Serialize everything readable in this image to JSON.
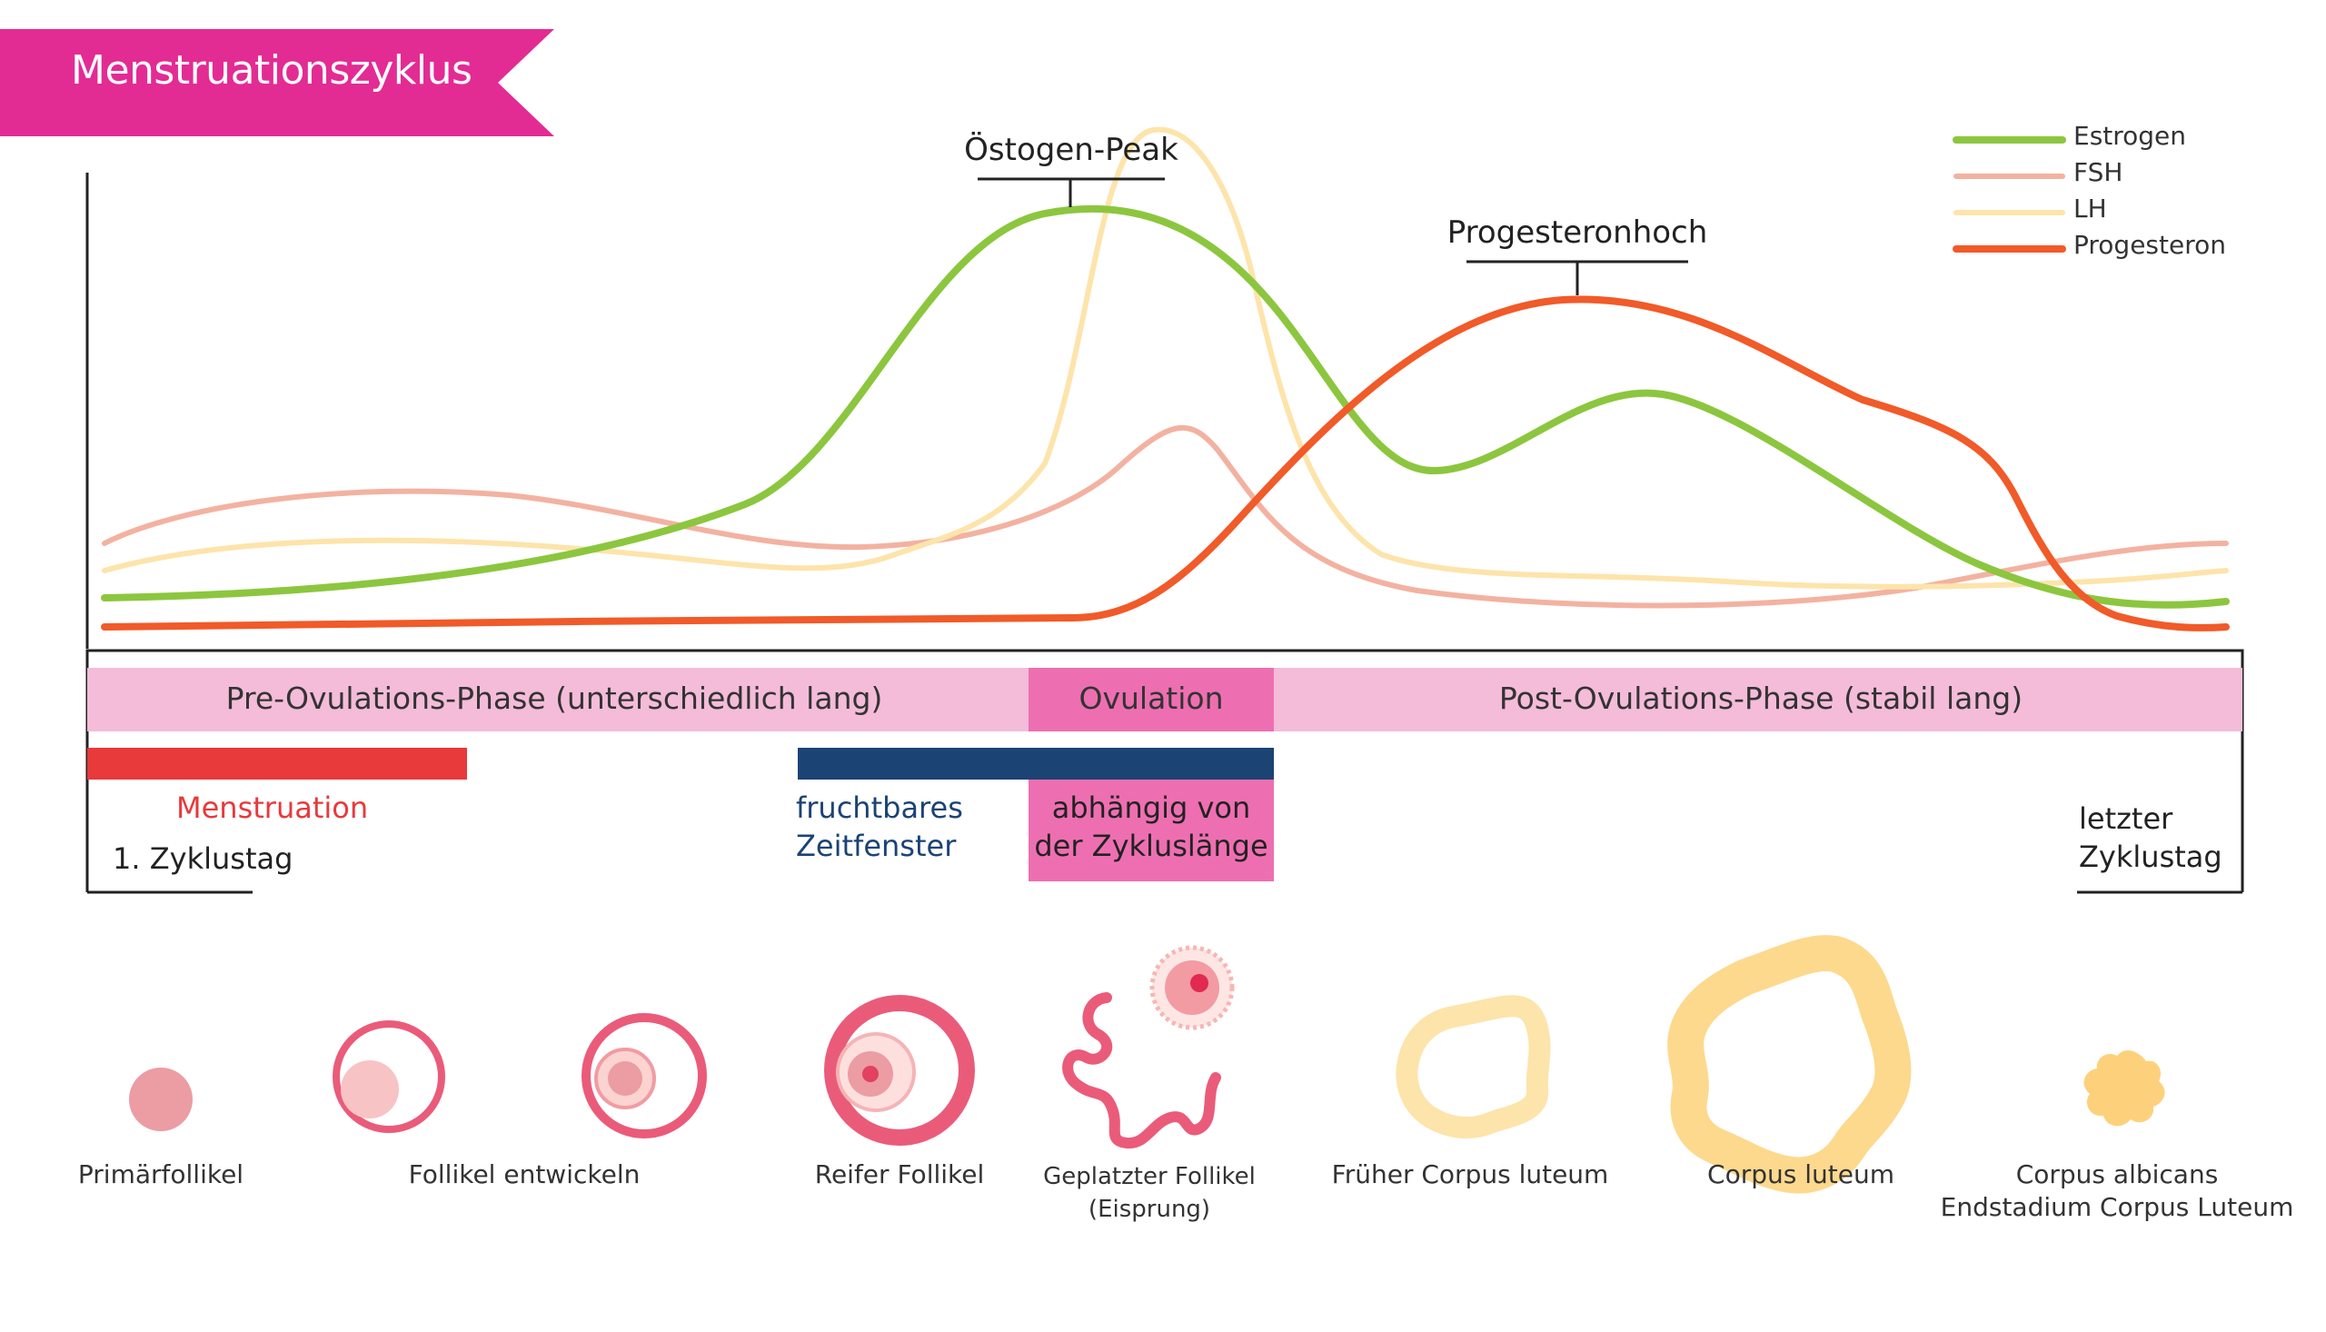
{
  "title": "Menstruationszyklus",
  "colors": {
    "title_banner": "#e32b94",
    "estrogen": "#8cc63f",
    "fsh": "#f3b2a1",
    "lh": "#fde4ab",
    "progesteron": "#f15a29",
    "phase_bar": "#f4bcd9",
    "ovulation": "#ee6fb1",
    "menstruation": "#e8393b",
    "fertile_window": "#1b4374"
  },
  "legend": [
    {
      "key": "estrogen",
      "label": "Estrogen"
    },
    {
      "key": "fsh",
      "label": "FSH"
    },
    {
      "key": "lh",
      "label": "LH"
    },
    {
      "key": "progesteron",
      "label": "Progesteron"
    }
  ],
  "annotations": {
    "estrogen_peak": "Östogen-Peak",
    "progesteron_peak": "Progesteronhoch"
  },
  "phases": {
    "pre": "Pre-Ovulations-Phase (unterschiedlich lang)",
    "ovulation": "Ovulation",
    "post": "Post-Ovulations-Phase (stabil lang)"
  },
  "bars": {
    "menstruation": "Menstruation",
    "fertile_line1": "fruchtbares",
    "fertile_line2": "Zeitfenster",
    "ovulation_note_line1": "abhängig von",
    "ovulation_note_line2": "der Zykluslänge"
  },
  "days": {
    "first": "1. Zyklustag",
    "last_line1": "letzter",
    "last_line2": "Zyklustag"
  },
  "stages": [
    {
      "label": "Primärfollikel",
      "icon": "primary-follicle-icon"
    },
    {
      "label": "Follikel entwickeln",
      "icon": "developing-follicle-icon"
    },
    {
      "label": "Reifer Follikel",
      "icon": "mature-follicle-icon"
    },
    {
      "label_line1": "Geplatzter Follikel",
      "label_line2": "(Eisprung)",
      "icon": "ruptured-follicle-icon"
    },
    {
      "label": "Früher Corpus luteum",
      "icon": "early-corpus-luteum-icon"
    },
    {
      "label": "Corpus luteum",
      "icon": "corpus-luteum-icon"
    },
    {
      "label_line1": "Corpus albicans",
      "label_line2": "Endstadium Corpus Luteum",
      "icon": "corpus-albicans-icon"
    }
  ]
}
